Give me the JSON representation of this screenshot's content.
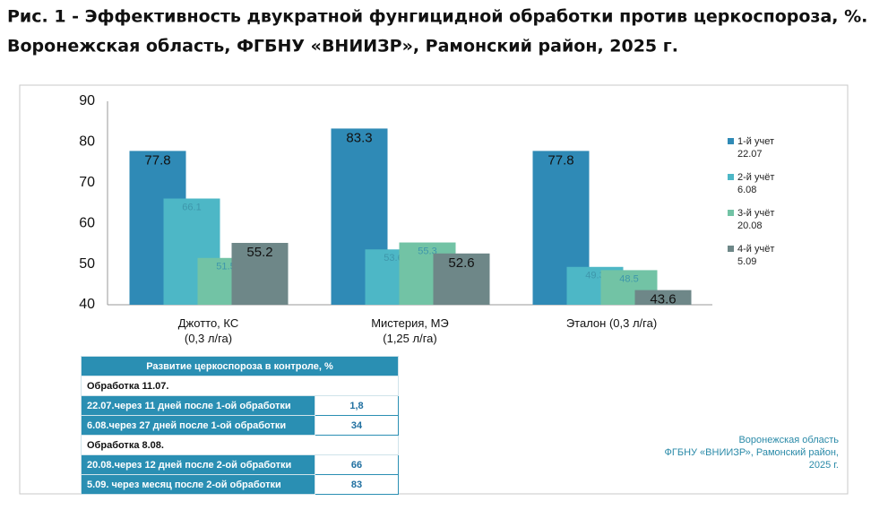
{
  "chart_data": {
    "type": "bar",
    "title": "Рис. 1 - Эффективность двукратной фунгицидной обработки против церкоспороза, %.",
    "subtitle": "Воронежская область, ФГБНУ «ВНИИЗР», Рамонский район, 2025 г.",
    "categories": [
      "Джотто, КС\n(0,3 л/га)",
      "Мистерия, МЭ\n(1,25 л/га)",
      "Эталон (0,3 л/га)"
    ],
    "series": [
      {
        "name": "1-й учет\n22.07",
        "color": "#2f8ab6",
        "values": [
          77.8,
          83.3,
          77.8
        ]
      },
      {
        "name": "2-й учёт\n6.08",
        "color": "#4db7c6",
        "values": [
          66.1,
          53.6,
          49.3
        ]
      },
      {
        "name": "3-й учёт\n20.08",
        "color": "#72c3a5",
        "values": [
          51.5,
          55.3,
          48.5
        ]
      },
      {
        "name": "4-й учёт\n5.09",
        "color": "#6e8788",
        "values": [
          55.2,
          52.6,
          43.6
        ]
      }
    ],
    "ylim": [
      40,
      90
    ],
    "yticks": [
      40,
      50,
      60,
      70,
      80,
      90
    ],
    "grid": false,
    "legend": "right"
  },
  "table": {
    "header": "Развитие церкоспороза в контроле, %",
    "groups": [
      {
        "title": "Обработка 11.07.",
        "rows": [
          [
            "22.07.через 11 дней после 1-ой обработки",
            "1,8"
          ],
          [
            "6.08.через 27 дней после 1-ой обработки",
            "34"
          ]
        ]
      },
      {
        "title": "Обработка 8.08.",
        "rows": [
          [
            "20.08.через 12 дней после 2-ой обработки",
            "66"
          ],
          [
            "5.09. через месяц после 2-ой обработки",
            "83"
          ]
        ]
      }
    ]
  },
  "note": "Воронежская область\nФГБНУ «ВНИИЗР», Рамонский район,\n2025 г."
}
